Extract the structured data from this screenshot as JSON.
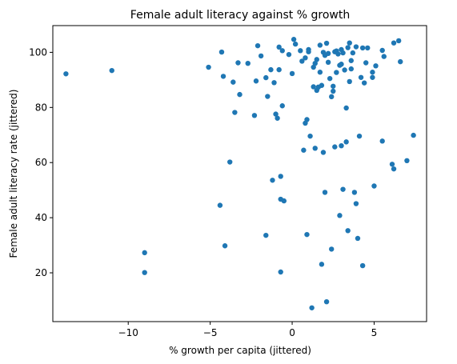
{
  "chart_data": {
    "type": "scatter",
    "title": "Female adult literacy against % growth",
    "xlabel": "% growth per capita (jittered)",
    "ylabel": "Female adult literacy rate (jittered)",
    "xlim": [
      -14.6,
      8.2
    ],
    "ylim": [
      2.3,
      109.7
    ],
    "xticks": [
      -10,
      -5,
      0,
      5
    ],
    "yticks": [
      20,
      40,
      60,
      80,
      100
    ],
    "grid": false,
    "marker_color": "#1f77b4",
    "points": [
      [
        -13.8,
        92.2
      ],
      [
        -11.0,
        93.4
      ],
      [
        -9.0,
        27.3
      ],
      [
        -9.0,
        20.1
      ],
      [
        -5.1,
        94.6
      ],
      [
        -4.4,
        44.5
      ],
      [
        -4.3,
        100.1
      ],
      [
        -4.2,
        91.3
      ],
      [
        -4.1,
        29.8
      ],
      [
        -3.8,
        60.2
      ],
      [
        -3.6,
        89.2
      ],
      [
        -3.5,
        78.2
      ],
      [
        -3.3,
        96.2
      ],
      [
        -3.2,
        84.7
      ],
      [
        -2.7,
        96.0
      ],
      [
        -2.3,
        77.1
      ],
      [
        -2.2,
        89.6
      ],
      [
        -2.1,
        102.4
      ],
      [
        -1.9,
        98.7
      ],
      [
        -1.6,
        33.6
      ],
      [
        -1.6,
        90.8
      ],
      [
        -1.5,
        84.0
      ],
      [
        -1.3,
        93.7
      ],
      [
        -1.2,
        53.6
      ],
      [
        -1.1,
        89.0
      ],
      [
        -1.0,
        77.6
      ],
      [
        -0.9,
        76.1
      ],
      [
        -0.8,
        101.9
      ],
      [
        -0.8,
        93.7
      ],
      [
        -0.7,
        55.0
      ],
      [
        -0.7,
        46.7
      ],
      [
        -0.7,
        20.3
      ],
      [
        -0.6,
        100.6
      ],
      [
        -0.6,
        80.6
      ],
      [
        -0.5,
        46.1
      ],
      [
        -0.2,
        99.2
      ],
      [
        0.0,
        92.3
      ],
      [
        0.1,
        104.7
      ],
      [
        0.2,
        103.0
      ],
      [
        0.5,
        100.6
      ],
      [
        0.6,
        96.8
      ],
      [
        0.7,
        64.5
      ],
      [
        0.8,
        74.3
      ],
      [
        0.8,
        98.0
      ],
      [
        0.9,
        33.9
      ],
      [
        0.9,
        75.6
      ],
      [
        1.0,
        101.0
      ],
      [
        1.0,
        100.2
      ],
      [
        1.1,
        69.6
      ],
      [
        1.2,
        7.3
      ],
      [
        1.3,
        94.6
      ],
      [
        1.3,
        87.5
      ],
      [
        1.4,
        96.0
      ],
      [
        1.4,
        65.2
      ],
      [
        1.5,
        97.4
      ],
      [
        1.5,
        86.2
      ],
      [
        1.6,
        87.4
      ],
      [
        1.7,
        102.6
      ],
      [
        1.7,
        92.8
      ],
      [
        1.8,
        23.1
      ],
      [
        1.8,
        88.0
      ],
      [
        1.9,
        100.0
      ],
      [
        1.9,
        63.7
      ],
      [
        2.0,
        49.2
      ],
      [
        2.0,
        98.9
      ],
      [
        2.1,
        9.5
      ],
      [
        2.1,
        103.3
      ],
      [
        2.2,
        99.6
      ],
      [
        2.2,
        96.4
      ],
      [
        2.3,
        90.5
      ],
      [
        2.4,
        28.6
      ],
      [
        2.4,
        83.9
      ],
      [
        2.5,
        87.7
      ],
      [
        2.5,
        85.9
      ],
      [
        2.6,
        65.7
      ],
      [
        2.6,
        100.2
      ],
      [
        2.7,
        92.7
      ],
      [
        2.7,
        100.5
      ],
      [
        2.8,
        99.4
      ],
      [
        2.9,
        95.3
      ],
      [
        2.9,
        40.8
      ],
      [
        3.0,
        101.0
      ],
      [
        3.0,
        66.1
      ],
      [
        3.0,
        95.7
      ],
      [
        3.1,
        50.3
      ],
      [
        3.1,
        99.8
      ],
      [
        3.2,
        93.6
      ],
      [
        3.3,
        79.8
      ],
      [
        3.3,
        67.5
      ],
      [
        3.4,
        35.3
      ],
      [
        3.4,
        101.7
      ],
      [
        3.5,
        103.4
      ],
      [
        3.5,
        89.4
      ],
      [
        3.6,
        97.0
      ],
      [
        3.6,
        94.0
      ],
      [
        3.7,
        99.8
      ],
      [
        3.8,
        49.2
      ],
      [
        3.9,
        102.0
      ],
      [
        3.9,
        45.1
      ],
      [
        4.0,
        32.5
      ],
      [
        4.1,
        69.6
      ],
      [
        4.2,
        90.9
      ],
      [
        4.3,
        22.6
      ],
      [
        4.3,
        101.6
      ],
      [
        4.4,
        88.9
      ],
      [
        4.5,
        96.2
      ],
      [
        4.6,
        101.6
      ],
      [
        4.9,
        92.8
      ],
      [
        4.9,
        90.9
      ],
      [
        5.0,
        51.5
      ],
      [
        5.1,
        95.1
      ],
      [
        5.5,
        100.7
      ],
      [
        5.5,
        67.8
      ],
      [
        5.6,
        98.5
      ],
      [
        6.1,
        59.4
      ],
      [
        6.2,
        57.7
      ],
      [
        6.2,
        103.4
      ],
      [
        6.5,
        104.2
      ],
      [
        6.6,
        96.6
      ],
      [
        7.0,
        60.7
      ],
      [
        7.4,
        69.9
      ]
    ]
  }
}
